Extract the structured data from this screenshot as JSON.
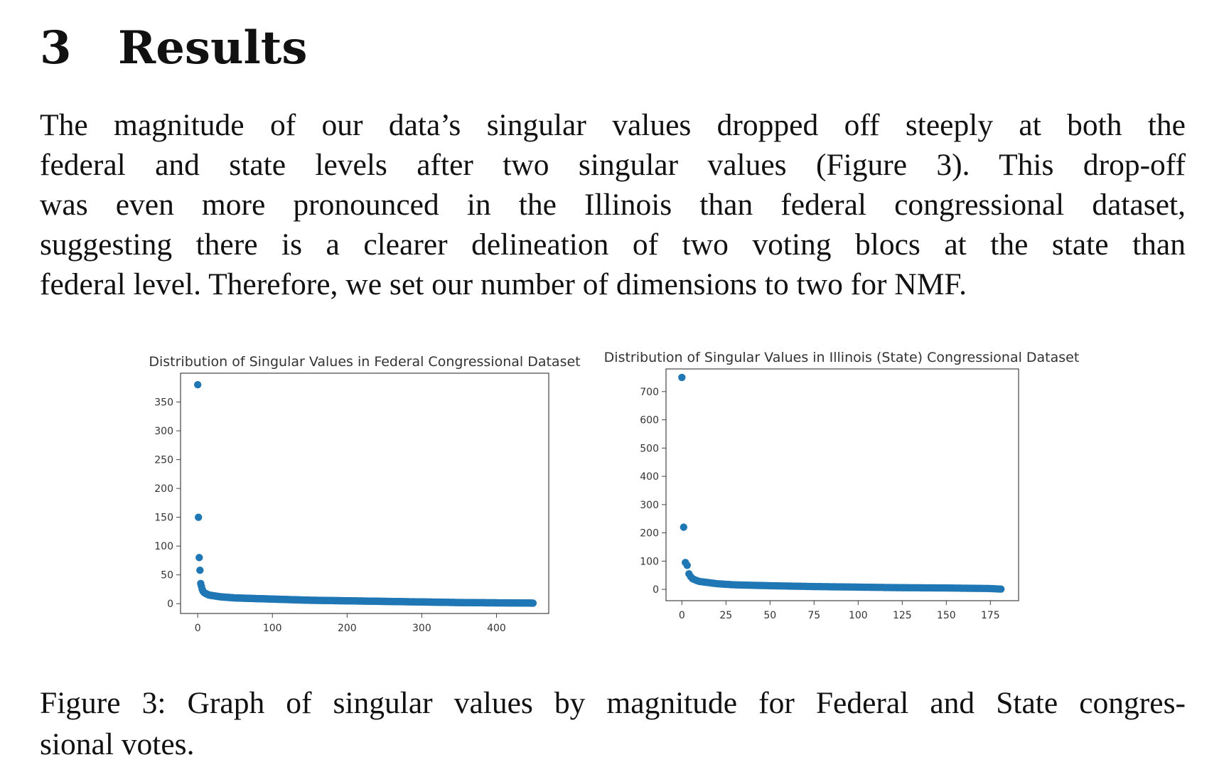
{
  "section": {
    "number": "3",
    "title": "Results"
  },
  "paragraph_lines": [
    "The magnitude of our data’s singular values dropped off steeply at both the",
    "federal and state levels after two singular values (Figure 3).  This drop-off",
    "was even more pronounced in the Illinois than federal congressional dataset,",
    "suggesting there is a clearer delineation of two voting blocs at the state than",
    "federal level. Therefore, we set our number of dimensions to two for NMF."
  ],
  "caption_lines": [
    "Figure 3: Graph of singular values by magnitude for Federal and State congres-",
    "sional votes."
  ],
  "point_color": "#1f77b4",
  "chart_data": [
    {
      "type": "scatter",
      "title": "Distribution of Singular Values in Federal Congressional Dataset",
      "xlabel": "",
      "ylabel": "",
      "xlim": [
        -23,
        470
      ],
      "ylim": [
        -17,
        400
      ],
      "xticks": [
        0,
        100,
        200,
        300,
        400
      ],
      "yticks": [
        0,
        50,
        100,
        150,
        200,
        250,
        300,
        350
      ],
      "grid": false,
      "n_points": 450,
      "x": [
        0,
        1,
        2,
        3,
        4,
        5,
        6,
        7,
        8,
        10,
        15,
        20,
        30,
        50,
        100,
        150,
        200,
        250,
        300,
        350,
        400,
        449
      ],
      "y": [
        380,
        150,
        80,
        58,
        35,
        30,
        25,
        22,
        20,
        18,
        15,
        14,
        12,
        10,
        8,
        6,
        5,
        4,
        3,
        2,
        1.5,
        1
      ]
    },
    {
      "type": "scatter",
      "title": "Distribution of Singular Values in Illinois (State) Congressional Dataset",
      "xlabel": "",
      "ylabel": "",
      "xlim": [
        -9,
        191
      ],
      "ylim": [
        -40,
        780
      ],
      "xticks": [
        0,
        25,
        50,
        75,
        100,
        125,
        150,
        175
      ],
      "yticks": [
        0,
        100,
        200,
        300,
        400,
        500,
        600,
        700
      ],
      "grid": false,
      "n_points": 182,
      "x": [
        0,
        1,
        2,
        3,
        4,
        5,
        6,
        8,
        10,
        15,
        20,
        25,
        30,
        50,
        75,
        100,
        125,
        150,
        175,
        181
      ],
      "y": [
        750,
        220,
        95,
        85,
        55,
        45,
        38,
        32,
        28,
        24,
        20,
        18,
        16,
        13,
        10,
        8,
        6,
        5,
        3,
        1
      ]
    }
  ]
}
